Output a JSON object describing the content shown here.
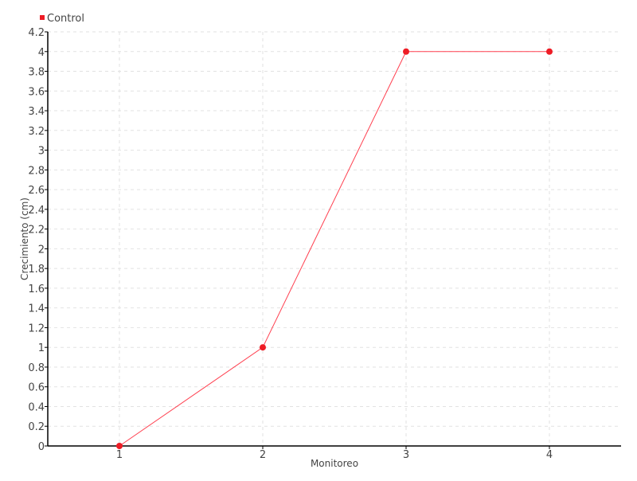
{
  "chart_data": {
    "type": "line",
    "title": "",
    "xlabel": "Monitoreo",
    "ylabel": "Crecimiento (cm)",
    "x": [
      1,
      2,
      3,
      4
    ],
    "x_tick_labels": [
      "1",
      "2",
      "3",
      "4"
    ],
    "xlim": [
      0.5,
      4.5
    ],
    "ylim": [
      0,
      4.2
    ],
    "y_ticks": [
      0,
      0.2,
      0.4,
      0.6,
      0.8,
      1,
      1.2,
      1.4,
      1.6,
      1.8,
      2,
      2.2,
      2.4,
      2.6,
      2.8,
      3,
      3.2,
      3.4,
      3.6,
      3.8,
      4,
      4.2
    ],
    "y_tick_labels": [
      "0",
      "0.2",
      "0.4",
      "0.6",
      "0.8",
      "1",
      "1.2",
      "1.4",
      "1.6",
      "1.8",
      "2",
      "2.2",
      "2.4",
      "2.6",
      "2.8",
      "3",
      "3.2",
      "3.4",
      "3.6",
      "3.8",
      "4",
      "4.2"
    ],
    "grid": true,
    "legend_position": "top-left",
    "series": [
      {
        "name": "Control",
        "values": [
          0,
          1,
          4,
          4
        ],
        "color": "#ee1c25"
      }
    ]
  }
}
